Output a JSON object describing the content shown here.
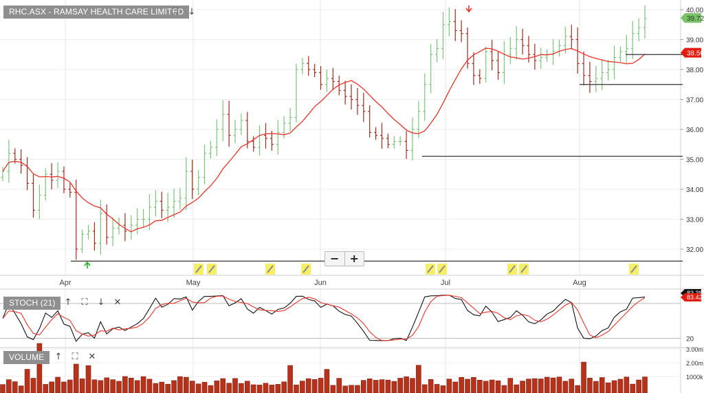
{
  "main_panel": {
    "title": "RHC.ASX - RAMSAY HEALTH CARE LIMITED"
  },
  "stoch_panel": {
    "title": "STOCH (21)",
    "k_value": "83.38",
    "d_value": "83.42",
    "level_low": "20"
  },
  "volume_panel": {
    "title": "VOLUME",
    "labels": [
      "3.00m",
      "2.00m",
      "1000k"
    ]
  },
  "price_axis": {
    "labels": [
      "40.00",
      "39.00",
      "38.00",
      "37.00",
      "36.00",
      "35.00",
      "34.00",
      "33.00",
      "32.00"
    ],
    "last_price": "39.72",
    "ma_value": "38.50"
  },
  "x_axis": {
    "months": [
      "Apr",
      "May",
      "Jun",
      "Jul",
      "Aug"
    ]
  },
  "colors": {
    "up": "#7dc27a",
    "down": "#a0291c",
    "ma": "#e8332a",
    "stoch_k": "#111111",
    "stoch_d": "#e8332a",
    "volume": "#b8321a",
    "last_tag": "#7cc26a",
    "ma_tag": "#e01d10",
    "annotation": "#f5ef68"
  },
  "icons": {
    "expand": "expand-icon",
    "down": "arrow-down-icon",
    "up": "arrow-up-icon",
    "close": "close-icon",
    "zoom_in": "plus-icon",
    "zoom_out": "minus-icon",
    "pencil": "pencil-icon"
  },
  "chart_data": {
    "type": "ohlc",
    "ylim": [
      31.6,
      40.2
    ],
    "month_labels": [
      "Apr",
      "May",
      "Jun",
      "Jul",
      "Aug"
    ],
    "close": [
      34.6,
      35.2,
      35.0,
      34.8,
      34.2,
      33.3,
      33.8,
      34.5,
      34.3,
      34.6,
      34.0,
      33.9,
      32.0,
      32.5,
      32.6,
      32.2,
      33.2,
      32.4,
      32.7,
      32.8,
      32.6,
      32.8,
      33.0,
      33.0,
      33.4,
      33.6,
      33.3,
      33.4,
      33.6,
      33.7,
      34.6,
      34.0,
      34.4,
      35.2,
      35.4,
      36.0,
      36.5,
      35.8,
      36.0,
      36.3,
      35.6,
      35.4,
      35.8,
      35.7,
      35.5,
      35.9,
      36.2,
      36.4,
      38.0,
      38.2,
      38.0,
      37.9,
      37.5,
      37.7,
      37.6,
      37.3,
      37.1,
      37.0,
      36.8,
      36.6,
      35.9,
      35.8,
      35.7,
      35.5,
      35.6,
      35.6,
      35.3,
      36.0,
      36.6,
      37.5,
      38.5,
      38.7,
      39.5,
      39.6,
      39.3,
      39.2,
      38.2,
      37.8,
      37.7,
      38.6,
      38.3,
      37.9,
      38.5,
      38.7,
      39.0,
      38.8,
      38.5,
      38.3,
      38.4,
      38.5,
      38.6,
      38.8,
      39.1,
      39.0,
      38.2,
      37.8,
      37.6,
      37.7,
      37.9,
      38.0,
      38.4,
      38.6,
      38.7,
      39.2,
      39.4,
      39.7
    ],
    "stoch_k_range": [
      10,
      100
    ],
    "volume_unit": "shares"
  }
}
